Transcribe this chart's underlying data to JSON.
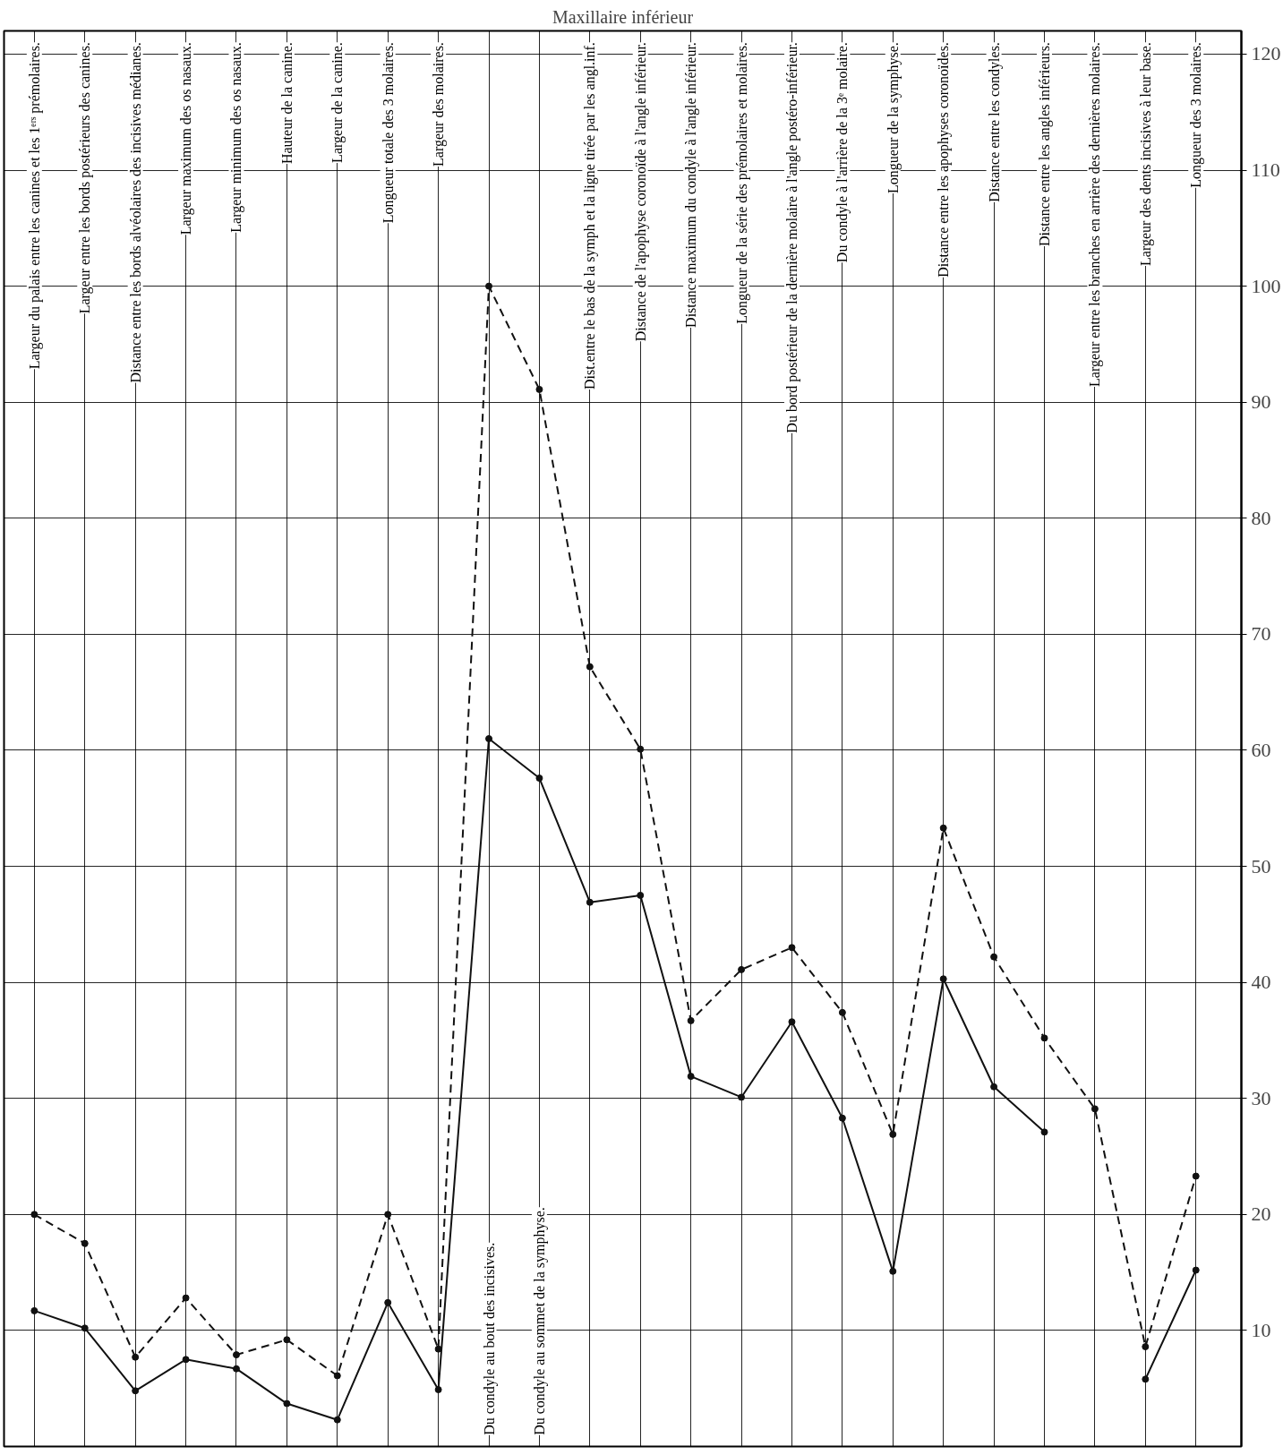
{
  "chart_data": {
    "type": "line",
    "title": "Maxillaire inférieur",
    "categories": [
      "Largeur du palais entre les canines et les 1ᵉʳˢ prémolaires.",
      "Largeur entre les bords postérieurs des canines.",
      "Distance entre les bords alvéolaires des incisives médianes.",
      "Largeur maximum des os nasaux.",
      "Largeur minimum des os nasaux.",
      "Hauteur de la canine.",
      "Largeur de la canine.",
      "Longueur totale des 3 molaires.",
      "Largeur des molaires.",
      "Du condyle au bout des incisives.",
      "Du condyle au sommet de la symphyse.",
      "Dist.entre le bas de la symph et la ligne tirée par les angl.inf.",
      "Distance de l'apophyse coronoïde à l'angle inférieur.",
      "Distance maximum du condyle à l'angle inférieur.",
      "Longueur de la série des prémolaires et molaires.",
      "Du bord postérieur de la dernière molaire à l'angle postéro-inférieur.",
      "Du condyle à l'arrière de la 3ᵉ molaire.",
      "Longueur de la symphyse.",
      "Distance entre les apophyses coronoïdes.",
      "Distance entre les condyles.",
      "Distance entre les angles inférieurs.",
      "Largeur entre les branches en arrière des dernières molaires.",
      "Largeur des dents incisives à leur base.",
      "Longueur des 3 molaires."
    ],
    "series": [
      {
        "color": "#111111",
        "line_style": "dashed",
        "values": [
          20.0,
          17.5,
          7.7,
          12.8,
          7.9,
          9.2,
          6.1,
          20.0,
          8.4,
          100,
          91.1,
          67.2,
          60.1,
          36.7,
          41.1,
          43.0,
          37.4,
          26.9,
          53.3,
          42.2,
          35.2,
          29.1,
          8.6,
          23.3
        ]
      },
      {
        "color": "#111111",
        "line_style": "solid",
        "values": [
          11.7,
          10.2,
          4.8,
          7.5,
          6.7,
          3.7,
          2.3,
          12.4,
          4.9,
          61.0,
          57.6,
          46.9,
          47.5,
          31.9,
          30.1,
          36.6,
          28.3,
          15.1,
          40.3,
          31.0,
          27.1,
          null,
          5.8,
          15.2
        ]
      }
    ],
    "ylim": [
      0,
      122
    ],
    "yticks": [
      10,
      20,
      30,
      40,
      50,
      60,
      70,
      80,
      90,
      100,
      110,
      120
    ],
    "grid": true,
    "marker": "circle"
  }
}
